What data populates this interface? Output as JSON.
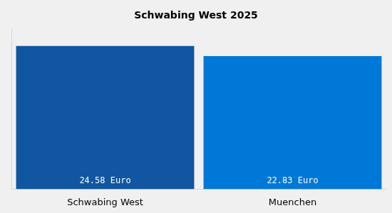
{
  "chart_data": {
    "type": "bar",
    "title": "Schwabing West 2025",
    "categories": [
      "Schwabing West",
      "Muenchen"
    ],
    "values": [
      24.58,
      22.83
    ],
    "value_labels": [
      "24.58 Euro",
      "22.83 Euro"
    ],
    "colors": [
      "#1056A0",
      "#0078D7"
    ],
    "ylim": [
      0,
      27.5
    ],
    "grid": false,
    "data_labels": true,
    "tick_labels": "x"
  }
}
